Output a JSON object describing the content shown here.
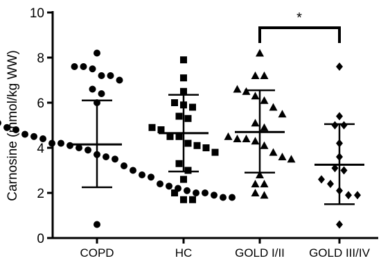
{
  "chart_data": {
    "type": "scatter",
    "title": "",
    "xlabel": "",
    "ylabel": "Carnosine (mmol/kg WW)",
    "ylim": [
      0,
      10
    ],
    "yticks": [
      "0",
      "2",
      "4",
      "6",
      "8",
      "10"
    ],
    "grid": false,
    "categories": [
      "COPD",
      "HC",
      "GOLD I/II",
      "GOLD III/IV"
    ],
    "series": [
      {
        "marker": "circle",
        "mean": 4.15,
        "sd_low": 2.25,
        "sd_high": 6.1,
        "values": [
          8.2,
          7.6,
          7.6,
          7.5,
          7.2,
          7.2,
          7.0,
          6.6,
          6.4,
          6.0,
          5.6,
          5.6,
          5.5,
          5.2,
          5.1,
          4.9,
          4.8,
          4.6,
          4.5,
          4.4,
          4.2,
          4.2,
          4.1,
          4.0,
          3.9,
          3.7,
          3.6,
          3.5,
          3.2,
          3.0,
          2.8,
          2.7,
          2.4,
          2.3,
          2.2,
          2.1,
          2.0,
          2.0,
          1.9,
          1.8,
          1.8,
          0.6
        ]
      },
      {
        "marker": "square",
        "mean": 4.65,
        "sd_low": 2.95,
        "sd_high": 6.35,
        "values": [
          7.9,
          7.1,
          6.5,
          6.0,
          5.9,
          5.8,
          5.4,
          5.3,
          4.9,
          4.8,
          4.5,
          4.5,
          4.2,
          4.1,
          4.0,
          3.8,
          3.3,
          3.0,
          2.6,
          2.0,
          1.7,
          1.7
        ]
      },
      {
        "marker": "triangle",
        "mean": 4.7,
        "sd_low": 2.9,
        "sd_high": 6.55,
        "values": [
          8.2,
          7.2,
          7.2,
          6.6,
          6.5,
          6.3,
          6.1,
          5.8,
          5.5,
          5.1,
          4.9,
          4.5,
          4.4,
          4.4,
          4.3,
          4.1,
          3.8,
          3.6,
          3.5,
          2.8,
          2.4,
          2.4,
          2.0,
          1.9
        ]
      },
      {
        "marker": "diamond",
        "mean": 3.25,
        "sd_low": 1.5,
        "sd_high": 5.05,
        "values": [
          7.6,
          5.4,
          5.0,
          5.0,
          4.2,
          3.6,
          3.1,
          3.0,
          2.6,
          2.4,
          2.1,
          1.9,
          1.9,
          0.6
        ]
      }
    ],
    "annotations": [
      {
        "type": "significance-bracket",
        "from": "GOLD I/II",
        "to": "GOLD III/IV",
        "label": "*"
      }
    ]
  }
}
